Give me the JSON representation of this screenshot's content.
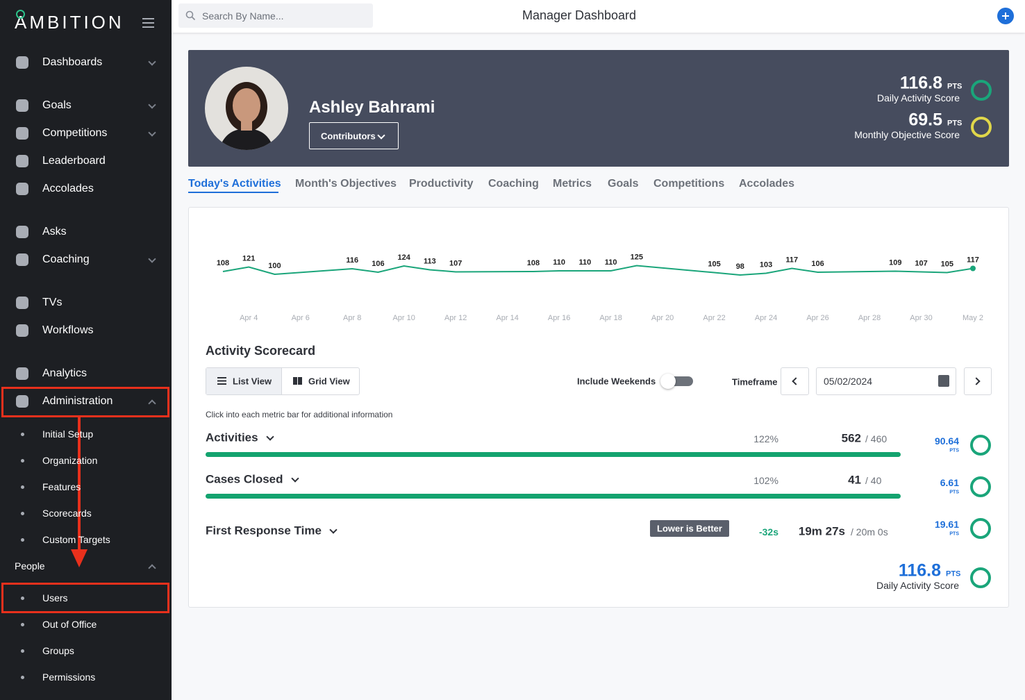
{
  "sidebar": {
    "logo": "AMBITION",
    "items": [
      "Dashboards",
      "Goals",
      "Competitions",
      "Leaderboard",
      "Accolades",
      "Asks",
      "Coaching",
      "TVs",
      "Workflows",
      "Analytics",
      "Administration"
    ],
    "admin_items": [
      "Initial Setup",
      "Organization",
      "Features",
      "Scorecards",
      "Custom Targets"
    ],
    "people_label": "People",
    "people_items": [
      "Users",
      "Out of Office",
      "Groups",
      "Permissions"
    ]
  },
  "header": {
    "search_placeholder": "Search By Name...",
    "title": "Manager Dashboard"
  },
  "profile": {
    "name": "Ashley Bahrami",
    "button": "Contributors",
    "scores": [
      {
        "value": "116.8",
        "unit": "PTS",
        "label": "Daily Activity Score"
      },
      {
        "value": "69.5",
        "unit": "PTS",
        "label": "Monthly Objective Score"
      }
    ]
  },
  "tabs": [
    "Today's Activities",
    "Month's Objectives",
    "Productivity",
    "Coaching",
    "Metrics",
    "Goals",
    "Competitions",
    "Accolades"
  ],
  "chart_data": {
    "type": "line",
    "x": [
      "Apr 3",
      "Apr 4",
      "Apr 5",
      "Apr 8",
      "Apr 9",
      "Apr 10",
      "Apr 11",
      "Apr 12",
      "Apr 15",
      "Apr 16",
      "Apr 17",
      "Apr 18",
      "Apr 19",
      "Apr 22",
      "Apr 23",
      "Apr 24",
      "Apr 25",
      "Apr 26",
      "Apr 29",
      "Apr 30",
      "May 1",
      "May 2"
    ],
    "values": [
      108,
      121,
      100,
      116,
      106,
      124,
      113,
      107,
      108,
      110,
      110,
      110,
      125,
      105,
      98,
      103,
      117,
      106,
      109,
      107,
      105,
      117
    ],
    "color": "#1aa57a",
    "xticks": [
      "Apr 4",
      "Apr 6",
      "Apr 8",
      "Apr 10",
      "Apr 12",
      "Apr 14",
      "Apr 16",
      "Apr 18",
      "Apr 20",
      "Apr 22",
      "Apr 24",
      "Apr 26",
      "Apr 28",
      "Apr 30",
      "May 2"
    ],
    "ylim": [
      0,
      300
    ]
  },
  "scorecard": {
    "title": "Activity Scorecard",
    "views": [
      "List View",
      "Grid View"
    ],
    "weekends_label": "Include Weekends",
    "timeframe_label": "Timeframe",
    "date": "05/02/2024",
    "hint": "Click into each metric bar for additional information",
    "metrics": [
      {
        "name": "Activities",
        "percent": "122%",
        "value": "562",
        "target": "/ 460",
        "points": "90.64",
        "unit": "PTS"
      },
      {
        "name": "Cases Closed",
        "percent": "102%",
        "value": "41",
        "target": "/ 40",
        "points": "6.61",
        "unit": "PTS"
      },
      {
        "name": "First Response Time",
        "badge": "Lower is Better",
        "delta": "-32s",
        "value": "19m 27s",
        "target": "/ 20m 0s",
        "points": "19.61",
        "unit": "PTS"
      }
    ],
    "total": {
      "value": "116.8",
      "unit": "PTS",
      "label": "Daily Activity Score"
    }
  }
}
